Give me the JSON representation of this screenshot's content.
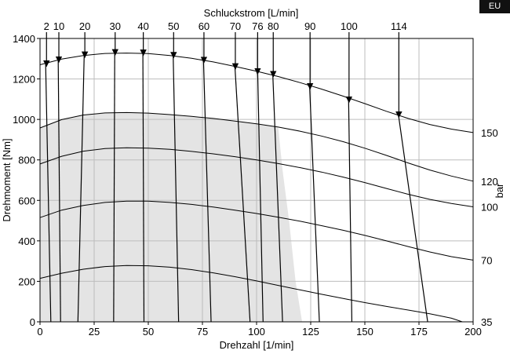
{
  "badge": "EU",
  "chart_data": {
    "type": "line",
    "xlabel": "Drehzahl [1/min]",
    "ylabel": "Drehmoment [Nm]",
    "top_label": "Schluckstrom [L/min]",
    "right_label": "bar",
    "xlim": [
      0,
      200
    ],
    "ylim": [
      0,
      1400
    ],
    "x_ticks": [
      0,
      25,
      50,
      75,
      100,
      125,
      150,
      175,
      200
    ],
    "y_ticks": [
      0,
      200,
      400,
      600,
      800,
      1000,
      1200,
      1400
    ],
    "grid": true,
    "shaded_region": {
      "description_fill": "#e4e4e4",
      "outline": [
        {
          "x": 0,
          "y": 0
        },
        {
          "x": 0,
          "y": 960
        },
        {
          "x": 10,
          "y": 1000
        },
        {
          "x": 20,
          "y": 1022
        },
        {
          "x": 30,
          "y": 1032
        },
        {
          "x": 40,
          "y": 1034
        },
        {
          "x": 50,
          "y": 1031
        },
        {
          "x": 60,
          "y": 1024
        },
        {
          "x": 70,
          "y": 1015
        },
        {
          "x": 80,
          "y": 1005
        },
        {
          "x": 90,
          "y": 992
        },
        {
          "x": 100,
          "y": 978
        },
        {
          "x": 106,
          "y": 970
        },
        {
          "x": 110,
          "y": 960
        },
        {
          "x": 112,
          "y": 750
        },
        {
          "x": 115,
          "y": 500
        },
        {
          "x": 118,
          "y": 200
        },
        {
          "x": 121,
          "y": 0
        }
      ]
    },
    "pressure_curves": [
      {
        "label": "150",
        "points": [
          {
            "x": 0,
            "y": 1270
          },
          {
            "x": 10,
            "y": 1298
          },
          {
            "x": 20,
            "y": 1316
          },
          {
            "x": 30,
            "y": 1326
          },
          {
            "x": 40,
            "y": 1328
          },
          {
            "x": 50,
            "y": 1325
          },
          {
            "x": 60,
            "y": 1316
          },
          {
            "x": 70,
            "y": 1302
          },
          {
            "x": 80,
            "y": 1284
          },
          {
            "x": 90,
            "y": 1262
          },
          {
            "x": 100,
            "y": 1238
          },
          {
            "x": 110,
            "y": 1212
          },
          {
            "x": 120,
            "y": 1182
          },
          {
            "x": 130,
            "y": 1150
          },
          {
            "x": 140,
            "y": 1115
          },
          {
            "x": 150,
            "y": 1078
          },
          {
            "x": 160,
            "y": 1040
          },
          {
            "x": 170,
            "y": 1005
          },
          {
            "x": 180,
            "y": 975
          },
          {
            "x": 190,
            "y": 952
          },
          {
            "x": 200,
            "y": 935
          }
        ]
      },
      {
        "label": "120",
        "points": [
          {
            "x": 0,
            "y": 958
          },
          {
            "x": 10,
            "y": 999
          },
          {
            "x": 20,
            "y": 1022
          },
          {
            "x": 30,
            "y": 1032
          },
          {
            "x": 40,
            "y": 1034
          },
          {
            "x": 50,
            "y": 1031
          },
          {
            "x": 60,
            "y": 1024
          },
          {
            "x": 70,
            "y": 1015
          },
          {
            "x": 80,
            "y": 1005
          },
          {
            "x": 90,
            "y": 992
          },
          {
            "x": 100,
            "y": 978
          },
          {
            "x": 110,
            "y": 962
          },
          {
            "x": 120,
            "y": 942
          },
          {
            "x": 130,
            "y": 918
          },
          {
            "x": 140,
            "y": 890
          },
          {
            "x": 150,
            "y": 858
          },
          {
            "x": 160,
            "y": 822
          },
          {
            "x": 170,
            "y": 785
          },
          {
            "x": 180,
            "y": 750
          },
          {
            "x": 190,
            "y": 720
          },
          {
            "x": 200,
            "y": 695
          }
        ]
      },
      {
        "label": "100",
        "points": [
          {
            "x": 0,
            "y": 780
          },
          {
            "x": 10,
            "y": 818
          },
          {
            "x": 20,
            "y": 843
          },
          {
            "x": 30,
            "y": 856
          },
          {
            "x": 40,
            "y": 860
          },
          {
            "x": 50,
            "y": 858
          },
          {
            "x": 60,
            "y": 852
          },
          {
            "x": 70,
            "y": 842
          },
          {
            "x": 80,
            "y": 830
          },
          {
            "x": 90,
            "y": 816
          },
          {
            "x": 100,
            "y": 800
          },
          {
            "x": 110,
            "y": 782
          },
          {
            "x": 120,
            "y": 762
          },
          {
            "x": 130,
            "y": 740
          },
          {
            "x": 140,
            "y": 715
          },
          {
            "x": 150,
            "y": 688
          },
          {
            "x": 160,
            "y": 659
          },
          {
            "x": 170,
            "y": 630
          },
          {
            "x": 180,
            "y": 605
          },
          {
            "x": 190,
            "y": 585
          },
          {
            "x": 200,
            "y": 568
          }
        ]
      },
      {
        "label": "70",
        "points": [
          {
            "x": 0,
            "y": 515
          },
          {
            "x": 10,
            "y": 552
          },
          {
            "x": 20,
            "y": 575
          },
          {
            "x": 30,
            "y": 590
          },
          {
            "x": 40,
            "y": 596
          },
          {
            "x": 50,
            "y": 596
          },
          {
            "x": 60,
            "y": 590
          },
          {
            "x": 70,
            "y": 580
          },
          {
            "x": 80,
            "y": 567
          },
          {
            "x": 90,
            "y": 552
          },
          {
            "x": 100,
            "y": 535
          },
          {
            "x": 110,
            "y": 517
          },
          {
            "x": 120,
            "y": 497
          },
          {
            "x": 130,
            "y": 475
          },
          {
            "x": 140,
            "y": 452
          },
          {
            "x": 150,
            "y": 427
          },
          {
            "x": 160,
            "y": 400
          },
          {
            "x": 170,
            "y": 372
          },
          {
            "x": 180,
            "y": 345
          },
          {
            "x": 190,
            "y": 322
          },
          {
            "x": 200,
            "y": 305
          }
        ]
      },
      {
        "label": "35",
        "points": [
          {
            "x": 0,
            "y": 215
          },
          {
            "x": 10,
            "y": 240
          },
          {
            "x": 20,
            "y": 260
          },
          {
            "x": 30,
            "y": 273
          },
          {
            "x": 40,
            "y": 278
          },
          {
            "x": 50,
            "y": 277
          },
          {
            "x": 60,
            "y": 270
          },
          {
            "x": 70,
            "y": 258
          },
          {
            "x": 80,
            "y": 242
          },
          {
            "x": 90,
            "y": 223
          },
          {
            "x": 100,
            "y": 202
          },
          {
            "x": 110,
            "y": 180
          },
          {
            "x": 120,
            "y": 158
          },
          {
            "x": 130,
            "y": 136
          },
          {
            "x": 140,
            "y": 115
          },
          {
            "x": 150,
            "y": 95
          },
          {
            "x": 160,
            "y": 76
          },
          {
            "x": 170,
            "y": 58
          },
          {
            "x": 180,
            "y": 40
          },
          {
            "x": 190,
            "y": 18
          },
          {
            "x": 195,
            "y": 0
          }
        ]
      }
    ],
    "flow_lines": [
      {
        "label": "2",
        "top": {
          "x": 2.6,
          "y": 1272
        },
        "bottom": {
          "x": 5.0,
          "y": 0
        }
      },
      {
        "label": "10",
        "top": {
          "x": 8.4,
          "y": 1295
        },
        "bottom": {
          "x": 9.5,
          "y": 0
        }
      },
      {
        "label": "20",
        "top": {
          "x": 20.4,
          "y": 1318
        },
        "bottom": {
          "x": 17.5,
          "y": 0
        }
      },
      {
        "label": "30",
        "top": {
          "x": 34.5,
          "y": 1328
        },
        "bottom": {
          "x": 34.0,
          "y": 0
        }
      },
      {
        "label": "40",
        "top": {
          "x": 47.5,
          "y": 1326
        },
        "bottom": {
          "x": 48.0,
          "y": 0
        }
      },
      {
        "label": "50",
        "top": {
          "x": 61.5,
          "y": 1314
        },
        "bottom": {
          "x": 64.0,
          "y": 0
        }
      },
      {
        "label": "60",
        "top": {
          "x": 75.5,
          "y": 1292
        },
        "bottom": {
          "x": 79.0,
          "y": 0
        }
      },
      {
        "label": "70",
        "top": {
          "x": 90.0,
          "y": 1262
        },
        "bottom": {
          "x": 97.0,
          "y": 0
        }
      },
      {
        "label": "76",
        "top": {
          "x": 100.5,
          "y": 1238
        },
        "bottom": {
          "x": 103.0,
          "y": 0
        }
      },
      {
        "label": "80",
        "top": {
          "x": 107.5,
          "y": 1220
        },
        "bottom": {
          "x": 112.0,
          "y": 0
        }
      },
      {
        "label": "90",
        "top": {
          "x": 124.5,
          "y": 1162
        },
        "bottom": {
          "x": 129.0,
          "y": 0
        }
      },
      {
        "label": "100",
        "top": {
          "x": 142.5,
          "y": 1096
        },
        "bottom": {
          "x": 144.0,
          "y": 0
        }
      },
      {
        "label": "114",
        "top": {
          "x": 165.5,
          "y": 1024
        },
        "bottom": {
          "x": 179.0,
          "y": 0
        }
      }
    ],
    "flow_arrow_tips": [
      {
        "label": "2",
        "x": 3.0,
        "y": 1262
      },
      {
        "label": "10",
        "x": 8.7,
        "y": 1282
      },
      {
        "label": "20",
        "x": 20.7,
        "y": 1306
      },
      {
        "label": "30",
        "x": 34.7,
        "y": 1318
      },
      {
        "label": "40",
        "x": 47.7,
        "y": 1316
      },
      {
        "label": "50",
        "x": 61.7,
        "y": 1304
      },
      {
        "label": "60",
        "x": 75.7,
        "y": 1280
      },
      {
        "label": "70",
        "x": 90.2,
        "y": 1248
      },
      {
        "label": "76",
        "x": 100.5,
        "y": 1224
      },
      {
        "label": "80",
        "x": 107.7,
        "y": 1210
      },
      {
        "label": "90",
        "x": 124.7,
        "y": 1150
      },
      {
        "label": "100",
        "x": 142.7,
        "y": 1084
      },
      {
        "label": "114",
        "x": 165.7,
        "y": 1010
      }
    ]
  }
}
